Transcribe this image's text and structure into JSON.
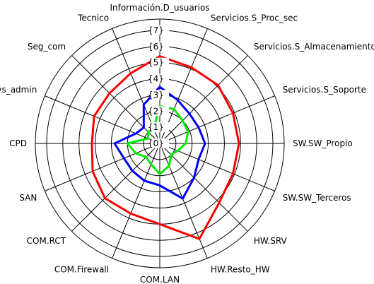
{
  "chart_data": {
    "type": "radar",
    "axes": [
      "Información.D_usuarios",
      "Servicios.S_Proc_sec",
      "Servicios.S_Almacenamiento",
      "Servicios.S_Soporte",
      "SW.SW_Propio",
      "SW.SW_Terceros",
      "HW.SRV",
      "HW.Resto_HW",
      "COM.LAN",
      "COM.Firewall",
      "COM.RCT",
      "SAN",
      "CPD",
      "Sys_admin",
      "Seg_com",
      "Tecnico"
    ],
    "tick_labels": [
      "{0}",
      "{1}",
      "{2}",
      "{3}",
      "{4}",
      "{5}",
      "{6}",
      "{7}"
    ],
    "rmax": 7.7,
    "series": [
      {
        "values": [
          5.4,
          5.1,
          5.1,
          4.9,
          4.9,
          4.9,
          5.2,
          6.4,
          5.0,
          4.7,
          4.8,
          4.5,
          4.2,
          4.4,
          4.4,
          4.7
        ],
        "color": "#ff0000"
      },
      {
        "values": [
          3.5,
          2.9,
          2.6,
          2.6,
          2.8,
          2.6,
          3.0,
          3.7,
          2.6,
          2.5,
          2.4,
          2.4,
          2.8,
          1.6,
          1.4,
          2.6
        ],
        "color": "#0000ff"
      },
      {
        "values": [
          2.3,
          2.3,
          2.0,
          1.9,
          1.6,
          1.2,
          1.0,
          1.5,
          1.9,
          1.4,
          1.2,
          1.6,
          2.0,
          0.8,
          1.0,
          1.0
        ],
        "color": "#00ee00"
      }
    ],
    "grid": true
  }
}
